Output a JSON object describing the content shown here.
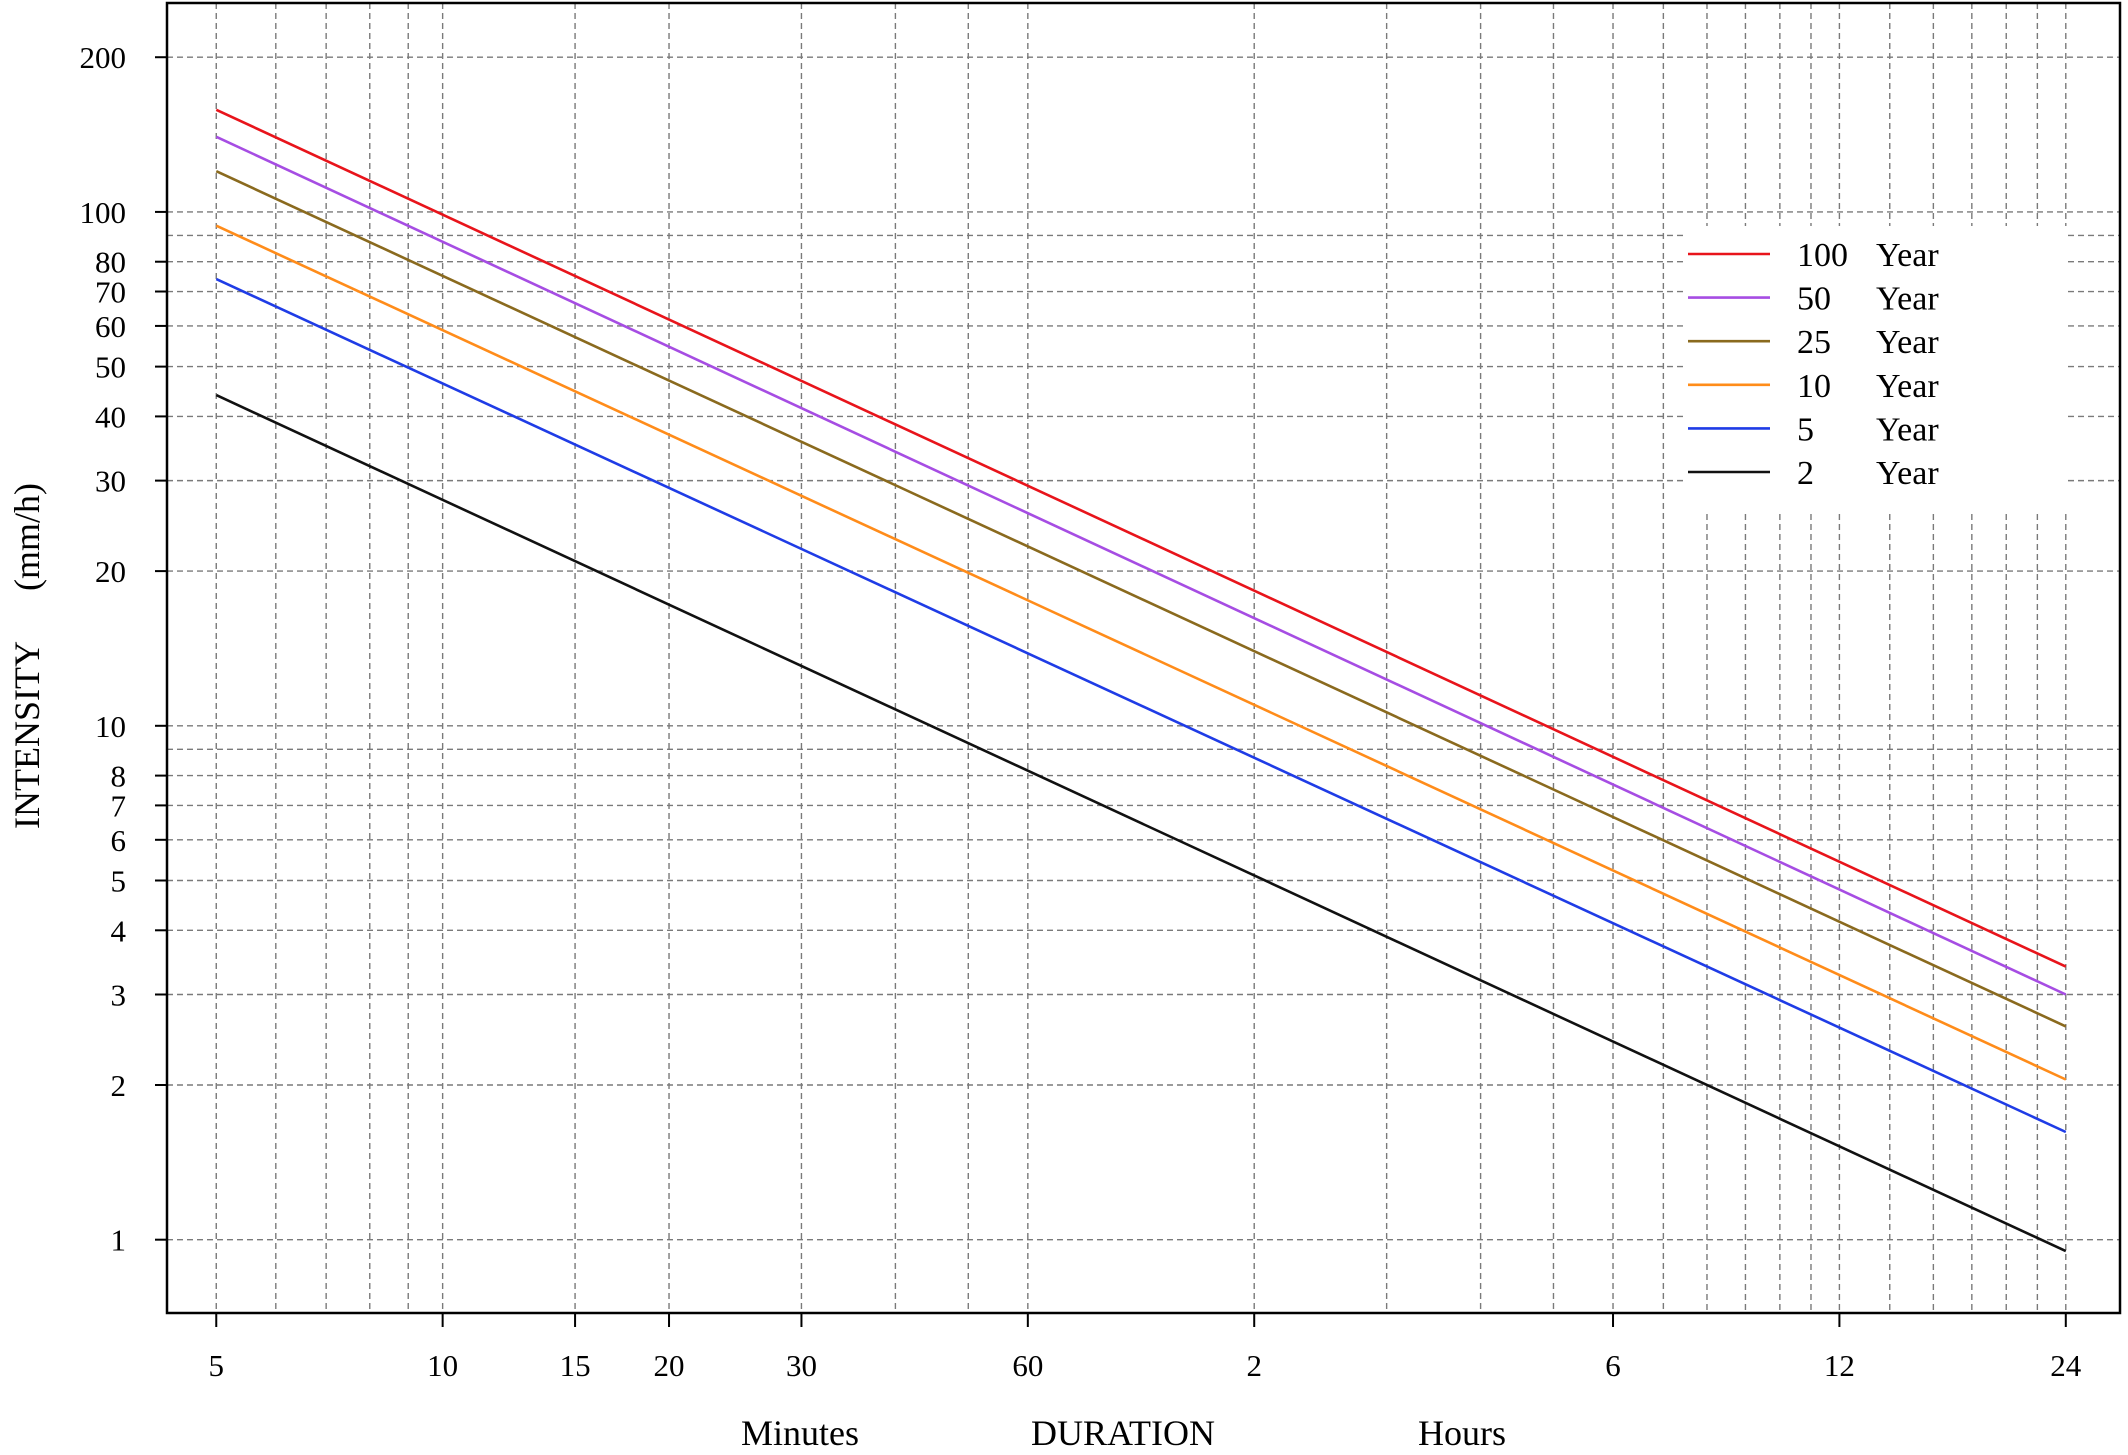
{
  "chart_data": {
    "type": "line",
    "x_scale": "log",
    "y_scale": "log",
    "grid": true,
    "legend_position": "top-right",
    "xlim_minutes": [
      4.3,
      1700
    ],
    "ylim": [
      0.72,
      255
    ],
    "y_ticks": [
      {
        "value": 1,
        "label": "1"
      },
      {
        "value": 2,
        "label": "2"
      },
      {
        "value": 3,
        "label": "3"
      },
      {
        "value": 4,
        "label": "4"
      },
      {
        "value": 5,
        "label": "5"
      },
      {
        "value": 6,
        "label": "6"
      },
      {
        "value": 7,
        "label": "7"
      },
      {
        "value": 8,
        "label": "8"
      },
      {
        "value": 10,
        "label": "10"
      },
      {
        "value": 20,
        "label": "20"
      },
      {
        "value": 30,
        "label": "30"
      },
      {
        "value": 40,
        "label": "40"
      },
      {
        "value": 50,
        "label": "50"
      },
      {
        "value": 60,
        "label": "60"
      },
      {
        "value": 70,
        "label": "70"
      },
      {
        "value": 80,
        "label": "80"
      },
      {
        "value": 100,
        "label": "100"
      },
      {
        "value": 200,
        "label": "200"
      }
    ],
    "y_grid": [
      1,
      2,
      3,
      4,
      5,
      6,
      7,
      8,
      9,
      10,
      20,
      30,
      40,
      50,
      60,
      70,
      80,
      90,
      100,
      200
    ],
    "x_ticks": [
      {
        "minutes": 5,
        "label": "5"
      },
      {
        "minutes": 10,
        "label": "10"
      },
      {
        "minutes": 15,
        "label": "15"
      },
      {
        "minutes": 20,
        "label": "20"
      },
      {
        "minutes": 30,
        "label": "30"
      },
      {
        "minutes": 60,
        "label": "60"
      },
      {
        "minutes": 120,
        "label": "2"
      },
      {
        "minutes": 360,
        "label": "6"
      },
      {
        "minutes": 720,
        "label": "12"
      },
      {
        "minutes": 1440,
        "label": "24"
      }
    ],
    "x_grid_minutes": [
      5,
      6,
      7,
      8,
      9,
      10,
      15,
      20,
      30,
      40,
      50,
      60,
      120,
      180,
      240,
      300,
      360,
      420,
      480,
      540,
      600,
      660,
      720,
      840,
      960,
      1080,
      1200,
      1320,
      1440
    ],
    "xlabel_parts": [
      "Minutes",
      "DURATION",
      "Hours"
    ],
    "ylabel_parts": [
      "INTENSITY",
      "(mm/h)"
    ],
    "series": [
      {
        "name": "100 Year",
        "legend_value": "100",
        "legend_unit": "Year",
        "color": "#e8141b",
        "x": [
          5,
          1440
        ],
        "y": [
          158,
          3.4
        ]
      },
      {
        "name": "50 Year",
        "legend_value": "50",
        "legend_unit": "Year",
        "color": "#a64de3",
        "x": [
          5,
          1440
        ],
        "y": [
          140,
          3.0
        ]
      },
      {
        "name": "25 Year",
        "legend_value": "25",
        "legend_unit": "Year",
        "color": "#8a6a1e",
        "x": [
          5,
          1440
        ],
        "y": [
          120,
          2.6
        ]
      },
      {
        "name": "10 Year",
        "legend_value": "10",
        "legend_unit": "Year",
        "color": "#ff8c1a",
        "x": [
          5,
          1440
        ],
        "y": [
          94,
          2.05
        ]
      },
      {
        "name": "5 Year",
        "legend_value": "5",
        "legend_unit": "Year",
        "color": "#1f3ce6",
        "x": [
          5,
          1440
        ],
        "y": [
          74,
          1.62
        ]
      },
      {
        "name": "2 Year",
        "legend_value": "2",
        "legend_unit": "Year",
        "color": "#111111",
        "x": [
          5,
          1440
        ],
        "y": [
          44,
          0.95
        ]
      }
    ]
  }
}
